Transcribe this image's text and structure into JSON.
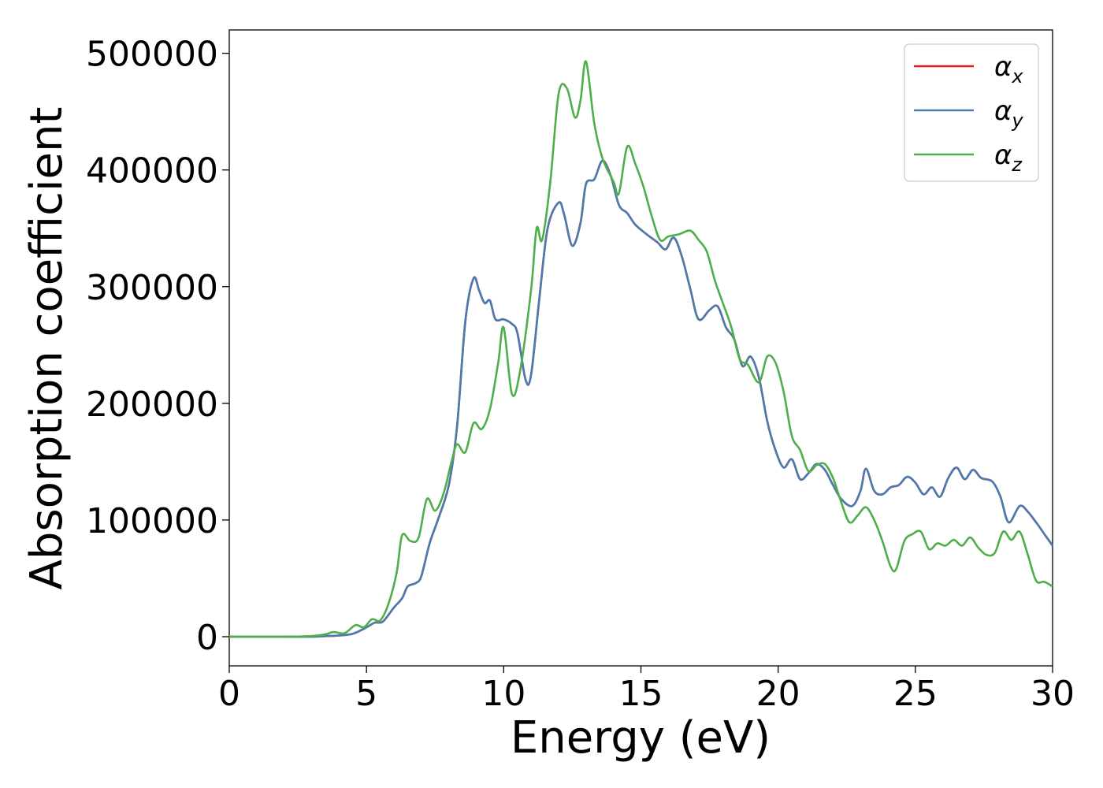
{
  "chart_data": {
    "type": "line",
    "title": "",
    "xlabel": "Energy (eV)",
    "ylabel": "Absorption coefficient",
    "xlim": [
      0,
      30
    ],
    "ylim": [
      -25000,
      520000
    ],
    "xticks": [
      0,
      5,
      10,
      15,
      20,
      25,
      30
    ],
    "xtick_labels": [
      "0",
      "5",
      "10",
      "15",
      "20",
      "25",
      "30"
    ],
    "yticks": [
      0,
      100000,
      200000,
      300000,
      400000,
      500000
    ],
    "ytick_labels": [
      "0",
      "100000",
      "200000",
      "300000",
      "400000",
      "500000"
    ],
    "grid": false,
    "legend_position": "top-right",
    "series": [
      {
        "name": "αx",
        "symbol": "α",
        "subscript": "x",
        "color": "#e41a1c",
        "points": [
          [
            0,
            0
          ],
          [
            1,
            0
          ],
          [
            2,
            0
          ],
          [
            3,
            0
          ],
          [
            3.5,
            500
          ],
          [
            4,
            1000
          ],
          [
            4.5,
            2500
          ],
          [
            5,
            8000
          ],
          [
            5.3,
            12000
          ],
          [
            5.6,
            13000
          ],
          [
            6,
            25000
          ],
          [
            6.3,
            33000
          ],
          [
            6.5,
            43000
          ],
          [
            6.8,
            46000
          ],
          [
            7,
            52000
          ],
          [
            7.3,
            80000
          ],
          [
            7.6,
            100000
          ],
          [
            8,
            130000
          ],
          [
            8.3,
            180000
          ],
          [
            8.6,
            270000
          ],
          [
            8.9,
            307000
          ],
          [
            9.1,
            297000
          ],
          [
            9.3,
            286000
          ],
          [
            9.5,
            288000
          ],
          [
            9.7,
            272000
          ],
          [
            10,
            272000
          ],
          [
            10.3,
            268000
          ],
          [
            10.5,
            260000
          ],
          [
            10.8,
            220000
          ],
          [
            11,
            225000
          ],
          [
            11.3,
            290000
          ],
          [
            11.6,
            350000
          ],
          [
            12,
            372000
          ],
          [
            12.2,
            362000
          ],
          [
            12.5,
            335000
          ],
          [
            12.8,
            355000
          ],
          [
            13,
            388000
          ],
          [
            13.3,
            392000
          ],
          [
            13.6,
            408000
          ],
          [
            13.9,
            395000
          ],
          [
            14.2,
            370000
          ],
          [
            14.5,
            363000
          ],
          [
            14.8,
            353000
          ],
          [
            15.2,
            345000
          ],
          [
            15.6,
            338000
          ],
          [
            15.9,
            332000
          ],
          [
            16.2,
            342000
          ],
          [
            16.5,
            325000
          ],
          [
            16.8,
            298000
          ],
          [
            17.1,
            272000
          ],
          [
            17.5,
            280000
          ],
          [
            17.8,
            283000
          ],
          [
            18.1,
            265000
          ],
          [
            18.4,
            255000
          ],
          [
            18.7,
            232000
          ],
          [
            19,
            240000
          ],
          [
            19.3,
            222000
          ],
          [
            19.6,
            185000
          ],
          [
            19.9,
            160000
          ],
          [
            20.2,
            145000
          ],
          [
            20.5,
            152000
          ],
          [
            20.8,
            135000
          ],
          [
            21.1,
            140000
          ],
          [
            21.4,
            148000
          ],
          [
            21.7,
            143000
          ],
          [
            22,
            130000
          ],
          [
            22.3,
            118000
          ],
          [
            22.7,
            112000
          ],
          [
            23,
            125000
          ],
          [
            23.2,
            144000
          ],
          [
            23.5,
            125000
          ],
          [
            23.8,
            122000
          ],
          [
            24.1,
            128000
          ],
          [
            24.4,
            130000
          ],
          [
            24.7,
            137000
          ],
          [
            25,
            132000
          ],
          [
            25.3,
            122000
          ],
          [
            25.6,
            128000
          ],
          [
            25.9,
            120000
          ],
          [
            26.2,
            136000
          ],
          [
            26.5,
            145000
          ],
          [
            26.8,
            135000
          ],
          [
            27.1,
            143000
          ],
          [
            27.4,
            136000
          ],
          [
            27.8,
            133000
          ],
          [
            28.1,
            120000
          ],
          [
            28.4,
            98000
          ],
          [
            28.8,
            112000
          ],
          [
            29.1,
            107000
          ],
          [
            29.4,
            98000
          ],
          [
            29.7,
            88000
          ],
          [
            30,
            78000
          ]
        ]
      },
      {
        "name": "αy",
        "symbol": "α",
        "subscript": "y",
        "color": "#4a7bb0",
        "points": [
          [
            0,
            0
          ],
          [
            1,
            0
          ],
          [
            2,
            0
          ],
          [
            3,
            0
          ],
          [
            3.5,
            500
          ],
          [
            4,
            1000
          ],
          [
            4.5,
            2500
          ],
          [
            5,
            8000
          ],
          [
            5.3,
            12000
          ],
          [
            5.6,
            13000
          ],
          [
            6,
            25000
          ],
          [
            6.3,
            33000
          ],
          [
            6.5,
            43000
          ],
          [
            6.8,
            46000
          ],
          [
            7,
            52000
          ],
          [
            7.3,
            80000
          ],
          [
            7.6,
            100000
          ],
          [
            8,
            130000
          ],
          [
            8.3,
            180000
          ],
          [
            8.6,
            270000
          ],
          [
            8.9,
            307000
          ],
          [
            9.1,
            297000
          ],
          [
            9.3,
            286000
          ],
          [
            9.5,
            288000
          ],
          [
            9.7,
            272000
          ],
          [
            10,
            272000
          ],
          [
            10.3,
            268000
          ],
          [
            10.5,
            260000
          ],
          [
            10.8,
            220000
          ],
          [
            11,
            225000
          ],
          [
            11.3,
            290000
          ],
          [
            11.6,
            350000
          ],
          [
            12,
            372000
          ],
          [
            12.2,
            362000
          ],
          [
            12.5,
            335000
          ],
          [
            12.8,
            355000
          ],
          [
            13,
            388000
          ],
          [
            13.3,
            392000
          ],
          [
            13.6,
            408000
          ],
          [
            13.9,
            395000
          ],
          [
            14.2,
            370000
          ],
          [
            14.5,
            363000
          ],
          [
            14.8,
            353000
          ],
          [
            15.2,
            345000
          ],
          [
            15.6,
            338000
          ],
          [
            15.9,
            332000
          ],
          [
            16.2,
            342000
          ],
          [
            16.5,
            325000
          ],
          [
            16.8,
            298000
          ],
          [
            17.1,
            272000
          ],
          [
            17.5,
            280000
          ],
          [
            17.8,
            283000
          ],
          [
            18.1,
            265000
          ],
          [
            18.4,
            255000
          ],
          [
            18.7,
            232000
          ],
          [
            19,
            240000
          ],
          [
            19.3,
            222000
          ],
          [
            19.6,
            185000
          ],
          [
            19.9,
            160000
          ],
          [
            20.2,
            145000
          ],
          [
            20.5,
            152000
          ],
          [
            20.8,
            135000
          ],
          [
            21.1,
            140000
          ],
          [
            21.4,
            148000
          ],
          [
            21.7,
            143000
          ],
          [
            22,
            130000
          ],
          [
            22.3,
            118000
          ],
          [
            22.7,
            112000
          ],
          [
            23,
            125000
          ],
          [
            23.2,
            144000
          ],
          [
            23.5,
            125000
          ],
          [
            23.8,
            122000
          ],
          [
            24.1,
            128000
          ],
          [
            24.4,
            130000
          ],
          [
            24.7,
            137000
          ],
          [
            25,
            132000
          ],
          [
            25.3,
            122000
          ],
          [
            25.6,
            128000
          ],
          [
            25.9,
            120000
          ],
          [
            26.2,
            136000
          ],
          [
            26.5,
            145000
          ],
          [
            26.8,
            135000
          ],
          [
            27.1,
            143000
          ],
          [
            27.4,
            136000
          ],
          [
            27.8,
            133000
          ],
          [
            28.1,
            120000
          ],
          [
            28.4,
            98000
          ],
          [
            28.8,
            112000
          ],
          [
            29.1,
            107000
          ],
          [
            29.4,
            98000
          ],
          [
            29.7,
            88000
          ],
          [
            30,
            78000
          ]
        ]
      },
      {
        "name": "αz",
        "symbol": "α",
        "subscript": "z",
        "color": "#4daf4a",
        "points": [
          [
            0,
            0
          ],
          [
            1,
            0
          ],
          [
            2,
            0
          ],
          [
            3,
            500
          ],
          [
            3.5,
            2000
          ],
          [
            3.8,
            4000
          ],
          [
            4.2,
            3000
          ],
          [
            4.6,
            10000
          ],
          [
            4.9,
            8000
          ],
          [
            5.2,
            15000
          ],
          [
            5.5,
            14000
          ],
          [
            5.8,
            28000
          ],
          [
            6.1,
            55000
          ],
          [
            6.3,
            87000
          ],
          [
            6.6,
            82000
          ],
          [
            6.9,
            85000
          ],
          [
            7.2,
            118000
          ],
          [
            7.5,
            108000
          ],
          [
            7.8,
            122000
          ],
          [
            8.1,
            150000
          ],
          [
            8.3,
            165000
          ],
          [
            8.6,
            158000
          ],
          [
            8.9,
            183000
          ],
          [
            9.2,
            178000
          ],
          [
            9.5,
            195000
          ],
          [
            9.8,
            235000
          ],
          [
            10,
            265000
          ],
          [
            10.3,
            208000
          ],
          [
            10.6,
            228000
          ],
          [
            11,
            298000
          ],
          [
            11.2,
            350000
          ],
          [
            11.4,
            340000
          ],
          [
            11.7,
            390000
          ],
          [
            12,
            465000
          ],
          [
            12.3,
            470000
          ],
          [
            12.6,
            445000
          ],
          [
            12.8,
            460000
          ],
          [
            13,
            493000
          ],
          [
            13.3,
            440000
          ],
          [
            13.6,
            410000
          ],
          [
            14,
            390000
          ],
          [
            14.2,
            380000
          ],
          [
            14.5,
            420000
          ],
          [
            14.8,
            405000
          ],
          [
            15.1,
            385000
          ],
          [
            15.4,
            360000
          ],
          [
            15.7,
            340000
          ],
          [
            16,
            343000
          ],
          [
            16.4,
            345000
          ],
          [
            16.8,
            348000
          ],
          [
            17.1,
            340000
          ],
          [
            17.4,
            330000
          ],
          [
            17.7,
            305000
          ],
          [
            18,
            285000
          ],
          [
            18.3,
            265000
          ],
          [
            18.6,
            238000
          ],
          [
            18.9,
            233000
          ],
          [
            19.3,
            218000
          ],
          [
            19.6,
            240000
          ],
          [
            19.9,
            235000
          ],
          [
            20.2,
            210000
          ],
          [
            20.5,
            172000
          ],
          [
            20.8,
            160000
          ],
          [
            21.1,
            142000
          ],
          [
            21.4,
            147000
          ],
          [
            21.7,
            148000
          ],
          [
            22,
            136000
          ],
          [
            22.3,
            115000
          ],
          [
            22.6,
            98000
          ],
          [
            22.9,
            104000
          ],
          [
            23.2,
            111000
          ],
          [
            23.5,
            100000
          ],
          [
            23.8,
            82000
          ],
          [
            24.1,
            60000
          ],
          [
            24.3,
            58000
          ],
          [
            24.6,
            82000
          ],
          [
            24.9,
            88000
          ],
          [
            25.2,
            90000
          ],
          [
            25.5,
            75000
          ],
          [
            25.8,
            80000
          ],
          [
            26.1,
            78000
          ],
          [
            26.4,
            83000
          ],
          [
            26.7,
            78000
          ],
          [
            27,
            85000
          ],
          [
            27.3,
            76000
          ],
          [
            27.6,
            70000
          ],
          [
            27.9,
            72000
          ],
          [
            28.2,
            90000
          ],
          [
            28.5,
            83000
          ],
          [
            28.8,
            90000
          ],
          [
            29.1,
            70000
          ],
          [
            29.4,
            48000
          ],
          [
            29.7,
            47000
          ],
          [
            30,
            43000
          ]
        ]
      }
    ]
  }
}
